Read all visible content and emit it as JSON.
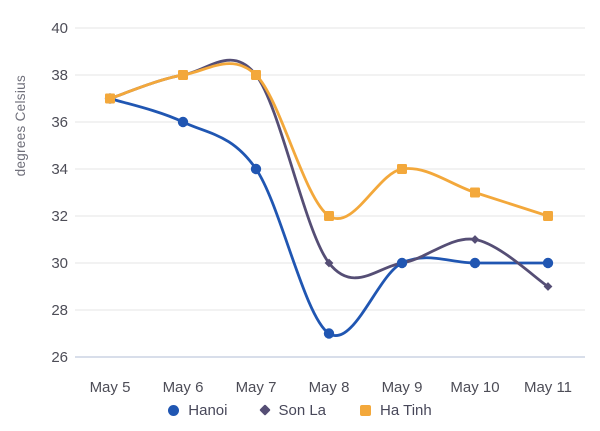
{
  "chart_data": {
    "type": "line",
    "title": "",
    "xlabel": "",
    "ylabel": "degrees Celsius",
    "categories": [
      "May 5",
      "May 6",
      "May 7",
      "May 8",
      "May 9",
      "May 10",
      "May 11"
    ],
    "series": [
      {
        "name": "Hanoi",
        "marker": "circle",
        "color": "#2056b2",
        "values": [
          37,
          36,
          34,
          27,
          30,
          30,
          30
        ]
      },
      {
        "name": "Son La",
        "marker": "diamond",
        "color": "#554e75",
        "values": [
          37,
          38,
          38,
          30,
          30,
          31,
          29
        ]
      },
      {
        "name": "Ha Tinh",
        "marker": "square",
        "color": "#f3a83b",
        "values": [
          37,
          38,
          38,
          32,
          34,
          33,
          32
        ]
      }
    ],
    "yticks": [
      40,
      38,
      36,
      34,
      32,
      30,
      28,
      26
    ],
    "ylim": [
      26,
      40
    ],
    "grid": true,
    "legend_position": "bottom",
    "colors": {
      "grid_line": "#ededed",
      "axis_line": "#ccd3e3",
      "tick_label": "#4d4d57",
      "axis_title": "#70707b",
      "legend_label": "#48485a",
      "background": "#ffffff"
    }
  }
}
